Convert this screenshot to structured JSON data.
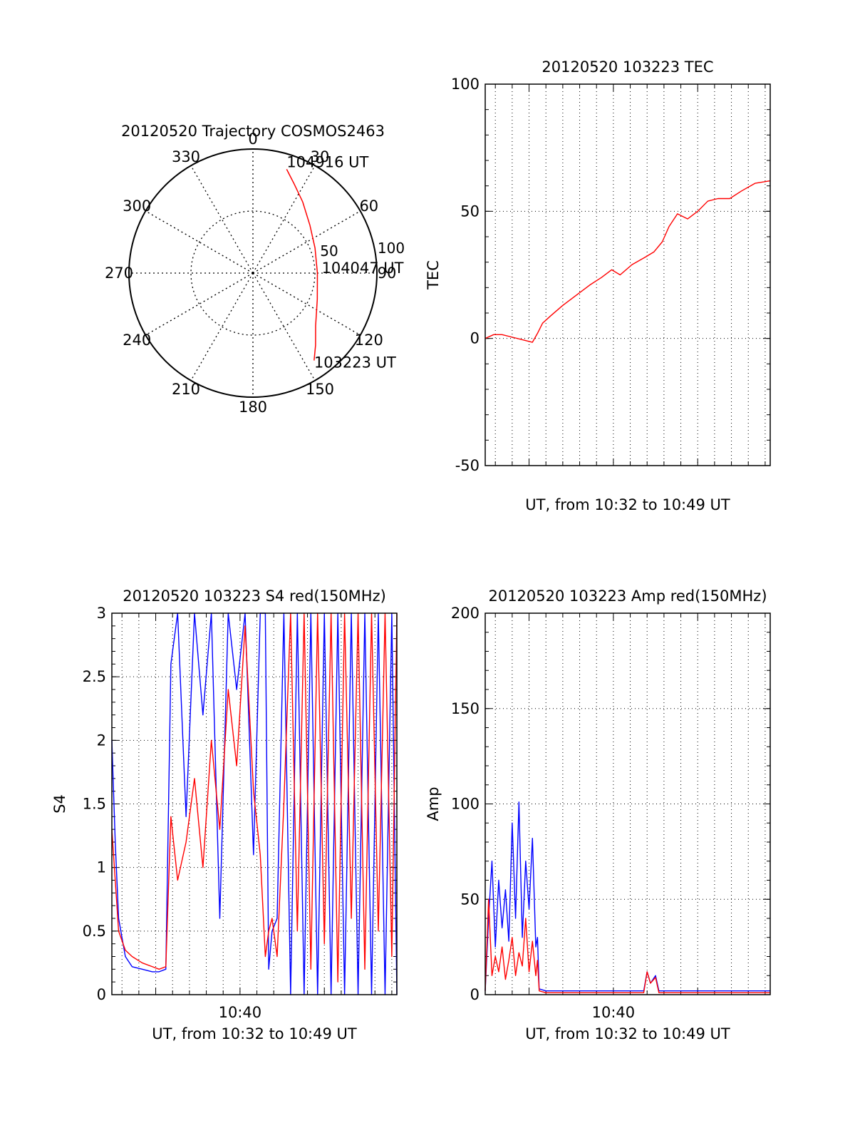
{
  "chart_data": [
    {
      "type": "polar",
      "title": "20120520 Trajectory COSMOS2463",
      "angle_ticks": [
        "0",
        "30",
        "60",
        "90",
        "120",
        "150",
        "180",
        "210",
        "240",
        "270",
        "300",
        "330"
      ],
      "radial_ticks": [
        "50",
        "100"
      ],
      "rlim": [
        0,
        100
      ],
      "grid": true,
      "series": [
        {
          "color": "#ff0000",
          "points": [
            {
              "azimuth": 18,
              "radius": 88
            },
            {
              "azimuth": 25,
              "radius": 79
            },
            {
              "azimuth": 35,
              "radius": 70
            },
            {
              "azimuth": 50,
              "radius": 60
            },
            {
              "azimuth": 68,
              "radius": 54
            },
            {
              "azimuth": 90,
              "radius": 52
            },
            {
              "azimuth": 112,
              "radius": 56
            },
            {
              "azimuth": 130,
              "radius": 66
            },
            {
              "azimuth": 139,
              "radius": 77
            },
            {
              "azimuth": 145,
              "radius": 86
            }
          ]
        }
      ],
      "annotations": [
        {
          "text": "104916 UT",
          "azimuth": 18,
          "radius": 88
        },
        {
          "text": "104047 UT",
          "azimuth": 90,
          "radius": 52
        },
        {
          "text": "103223 UT",
          "azimuth": 145,
          "radius": 86
        }
      ]
    },
    {
      "type": "line",
      "title": "20120520 103223 TEC",
      "xlabel": "UT, from 10:32 to 10:49 UT",
      "ylabel": "TEC",
      "ylim": [
        -50,
        100
      ],
      "yticks": [
        "-50",
        "0",
        "50",
        "100"
      ],
      "xticks": [],
      "xlim_minutes": [
        32.4,
        49.3
      ],
      "grid": true,
      "series": [
        {
          "color": "#ff0000",
          "x": [
            32.4,
            32.9,
            33.4,
            34.0,
            34.6,
            35.2,
            35.5,
            35.8,
            36.3,
            37.0,
            37.8,
            38.6,
            39.3,
            39.9,
            40.4,
            41.1,
            41.9,
            42.4,
            42.9,
            43.3,
            43.8,
            44.4,
            45.0,
            45.6,
            46.2,
            46.9,
            47.6,
            48.4,
            49.3
          ],
          "y": [
            0,
            1.5,
            1.5,
            0.5,
            -0.5,
            -1.5,
            2,
            6,
            9,
            13,
            17,
            21,
            24,
            27,
            25,
            29,
            32,
            34,
            38,
            44,
            49,
            47,
            50,
            54,
            55,
            55,
            58,
            61,
            62
          ]
        }
      ]
    },
    {
      "type": "line",
      "title": "20120520 103223 S4 red(150MHz)",
      "xlabel": "UT, from 10:32 to 10:49 UT",
      "ylabel": "S4",
      "ylim": [
        0,
        3
      ],
      "yticks": [
        "0",
        "0.5",
        "1",
        "1.5",
        "2",
        "2.5",
        "3"
      ],
      "xticks": [
        "10:40"
      ],
      "xlim_minutes": [
        32.4,
        49.3
      ],
      "grid": true,
      "series": [
        {
          "color": "#0000ff",
          "x": [
            32.4,
            32.6,
            32.8,
            33.2,
            33.6,
            34.2,
            34.8,
            35.2,
            35.6,
            35.9,
            36.3,
            36.8,
            37.3,
            37.8,
            38.3,
            38.8,
            39.3,
            39.8,
            40.3,
            40.8,
            41.2,
            41.5,
            41.7,
            41.9,
            42.2,
            42.6,
            43.0,
            43.4,
            43.8,
            44.2,
            44.6,
            45.0,
            45.4,
            45.8,
            46.2,
            46.6,
            47.0,
            47.4,
            47.8,
            48.2,
            48.6,
            49.0,
            49.3
          ],
          "y": [
            2.0,
            1.2,
            0.6,
            0.3,
            0.22,
            0.2,
            0.18,
            0.18,
            0.2,
            2.6,
            3.0,
            1.4,
            3.0,
            2.2,
            3.0,
            0.6,
            3.0,
            2.4,
            3.0,
            1.1,
            3.0,
            3.0,
            0.2,
            0.5,
            0.6,
            3.0,
            0.0,
            3.0,
            0.0,
            3.0,
            0.0,
            3.0,
            0.0,
            3.0,
            0.0,
            3.0,
            0.0,
            3.0,
            0.0,
            3.0,
            0.0,
            3.0,
            0.0
          ]
        },
        {
          "color": "#ff0000",
          "x": [
            32.4,
            32.6,
            32.8,
            33.2,
            33.6,
            34.2,
            34.8,
            35.2,
            35.6,
            35.9,
            36.3,
            36.8,
            37.3,
            37.8,
            38.3,
            38.8,
            39.3,
            39.8,
            40.3,
            40.8,
            41.2,
            41.5,
            41.7,
            41.9,
            42.2,
            42.6,
            43.0,
            43.4,
            43.8,
            44.2,
            44.6,
            45.0,
            45.4,
            45.8,
            46.2,
            46.6,
            47.0,
            47.4,
            47.8,
            48.2,
            48.6,
            49.0,
            49.3
          ],
          "y": [
            1.3,
            0.9,
            0.5,
            0.35,
            0.3,
            0.25,
            0.22,
            0.2,
            0.22,
            1.4,
            0.9,
            1.2,
            1.7,
            1.0,
            2.0,
            1.3,
            2.4,
            1.8,
            2.9,
            1.6,
            1.1,
            0.3,
            0.5,
            0.6,
            0.3,
            1.5,
            3.0,
            0.5,
            3.0,
            0.2,
            3.0,
            0.4,
            3.0,
            0.1,
            3.0,
            0.6,
            3.0,
            0.2,
            3.0,
            0.5,
            3.0,
            0.3,
            3.0
          ]
        }
      ]
    },
    {
      "type": "line",
      "title": "20120520 103223 Amp red(150MHz)",
      "xlabel": "UT, from 10:32 to 10:49 UT",
      "ylabel": "Amp",
      "ylim": [
        0,
        200
      ],
      "yticks": [
        "0",
        "50",
        "100",
        "150",
        "200"
      ],
      "xticks": [
        "10:40"
      ],
      "xlim_minutes": [
        32.4,
        49.3
      ],
      "grid": true,
      "series": [
        {
          "color": "#0000ff",
          "x": [
            32.4,
            32.6,
            32.8,
            33.0,
            33.2,
            33.4,
            33.6,
            33.8,
            34.0,
            34.2,
            34.4,
            34.6,
            34.8,
            35.0,
            35.2,
            35.4,
            35.5,
            35.6,
            36.0,
            37.0,
            38.0,
            39.0,
            40.0,
            41.0,
            41.8,
            42.0,
            42.2,
            42.5,
            42.7,
            43.0,
            44.0,
            45.0,
            46.0,
            47.0,
            48.0,
            49.3
          ],
          "y": [
            2,
            40,
            70,
            25,
            60,
            35,
            55,
            28,
            90,
            40,
            101,
            30,
            70,
            45,
            82,
            25,
            30,
            3,
            2,
            2,
            2,
            2,
            2,
            2,
            2,
            12,
            6,
            10,
            2,
            2,
            2,
            2,
            2,
            2,
            2,
            2
          ]
        },
        {
          "color": "#ff0000",
          "x": [
            32.4,
            32.6,
            32.8,
            33.0,
            33.2,
            33.4,
            33.6,
            33.8,
            34.0,
            34.2,
            34.4,
            34.6,
            34.8,
            35.0,
            35.2,
            35.4,
            35.5,
            35.6,
            36.0,
            37.0,
            38.0,
            39.0,
            40.0,
            41.0,
            41.8,
            42.0,
            42.2,
            42.5,
            42.7,
            43.0,
            44.0,
            45.0,
            46.0,
            47.0,
            48.0,
            49.3
          ],
          "y": [
            2,
            50,
            10,
            20,
            12,
            25,
            8,
            18,
            30,
            10,
            22,
            15,
            40,
            12,
            28,
            10,
            18,
            2,
            1,
            1,
            1,
            1,
            1,
            1,
            1,
            12,
            6,
            9,
            1,
            1,
            1,
            1,
            1,
            1,
            1,
            1
          ]
        }
      ]
    }
  ]
}
